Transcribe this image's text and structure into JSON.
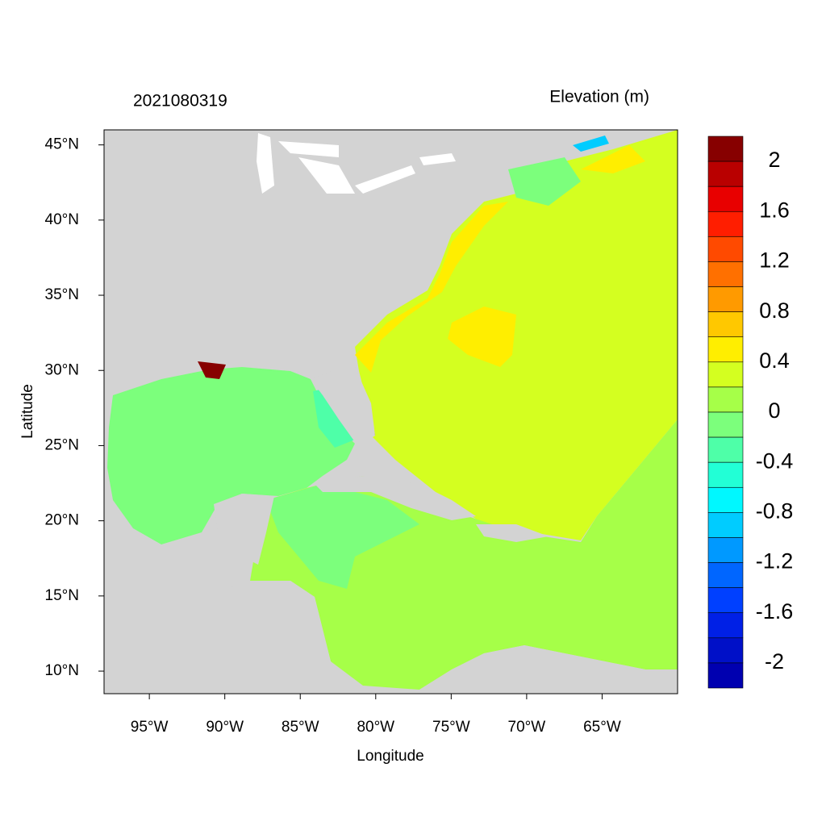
{
  "title": "2021080319",
  "colorbar_title": "Elevation (m)",
  "x_label": "Longitude",
  "y_label": "Latitude",
  "xlim": [
    -98,
    -60
  ],
  "ylim": [
    8.5,
    46
  ],
  "xticks": [
    {
      "value": -95,
      "label": "95°W"
    },
    {
      "value": -90,
      "label": "90°W"
    },
    {
      "value": -85,
      "label": "85°W"
    },
    {
      "value": -80,
      "label": "80°W"
    },
    {
      "value": -75,
      "label": "75°W"
    },
    {
      "value": -70,
      "label": "70°W"
    },
    {
      "value": -65,
      "label": "65°W"
    }
  ],
  "yticks": [
    {
      "value": 10,
      "label": "10°N"
    },
    {
      "value": 15,
      "label": "15°N"
    },
    {
      "value": 20,
      "label": "20°N"
    },
    {
      "value": 25,
      "label": "25°N"
    },
    {
      "value": 30,
      "label": "30°N"
    },
    {
      "value": 35,
      "label": "35°N"
    },
    {
      "value": 40,
      "label": "40°N"
    },
    {
      "value": 45,
      "label": "45°N"
    }
  ],
  "colorbar": {
    "levels": [
      2,
      1.8,
      1.6,
      1.4,
      1.2,
      1,
      0.8,
      0.6,
      0.4,
      0.2,
      0,
      -0.2,
      -0.4,
      -0.6,
      -0.8,
      -1,
      -1.2,
      -1.4,
      -1.6,
      -1.8,
      -2
    ],
    "colors": [
      "#870000",
      "#b90000",
      "#e80000",
      "#ff1e00",
      "#ff4a00",
      "#ff7000",
      "#ff9a00",
      "#ffc800",
      "#ffee00",
      "#d4ff20",
      "#a6ff48",
      "#7cff7c",
      "#4effa8",
      "#22ffd6",
      "#00f8ff",
      "#00ccff",
      "#0099ff",
      "#0066ff",
      "#0040ff",
      "#0020e6",
      "#0010c8",
      "#0000b0"
    ],
    "ticks": [
      2,
      1.6,
      1.2,
      0.8,
      0.4,
      0,
      -0.4,
      -0.8,
      -1.2,
      -1.6,
      -2
    ]
  }
}
